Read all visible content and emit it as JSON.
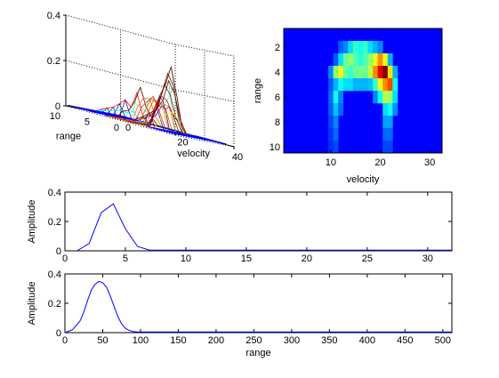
{
  "chart_data": [
    {
      "type": "surface3d",
      "xlabel": "velocity",
      "ylabel": "range",
      "zlabel": "",
      "xlim": [
        0,
        40
      ],
      "ylim": [
        0,
        10
      ],
      "zlim": [
        0,
        0.4
      ],
      "x_ticks": [
        "0",
        "20",
        "40"
      ],
      "y_ticks": [
        "0",
        "5",
        "10"
      ],
      "z_ticks": [
        "0",
        "0.2",
        "0.4"
      ],
      "grid": true,
      "peak": {
        "velocity": 20,
        "range": 4,
        "amplitude": 0.28
      }
    },
    {
      "type": "heatmap",
      "xlabel": "velocity",
      "ylabel": "range",
      "xlim": [
        0.5,
        32.5
      ],
      "ylim": [
        0.5,
        10.5
      ],
      "x_ticks": [
        "10",
        "20",
        "30"
      ],
      "y_ticks": [
        "2",
        "4",
        "6",
        "8",
        "10"
      ],
      "colormap": "jet",
      "rows": 10,
      "cols": 32,
      "cells": [
        [
          2,
          12,
          0.1
        ],
        [
          2,
          13,
          0.15
        ],
        [
          2,
          14,
          0.25
        ],
        [
          2,
          15,
          0.35
        ],
        [
          2,
          16,
          0.3
        ],
        [
          2,
          17,
          0.35
        ],
        [
          2,
          18,
          0.25
        ],
        [
          2,
          19,
          0.2
        ],
        [
          2,
          20,
          0.15
        ],
        [
          3,
          11,
          0.1
        ],
        [
          3,
          12,
          0.25
        ],
        [
          3,
          13,
          0.4
        ],
        [
          3,
          14,
          0.45
        ],
        [
          3,
          15,
          0.38
        ],
        [
          3,
          16,
          0.32
        ],
        [
          3,
          17,
          0.38
        ],
        [
          3,
          18,
          0.45
        ],
        [
          3,
          19,
          0.55
        ],
        [
          3,
          20,
          0.7
        ],
        [
          3,
          21,
          0.55
        ],
        [
          3,
          22,
          0.2
        ],
        [
          4,
          10,
          0.15
        ],
        [
          4,
          11,
          0.45
        ],
        [
          4,
          12,
          0.55
        ],
        [
          4,
          13,
          0.4
        ],
        [
          4,
          14,
          0.35
        ],
        [
          4,
          15,
          0.4
        ],
        [
          4,
          16,
          0.42
        ],
        [
          4,
          17,
          0.4
        ],
        [
          4,
          18,
          0.5
        ],
        [
          4,
          19,
          0.7
        ],
        [
          4,
          20,
          0.88
        ],
        [
          4,
          21,
          1.0
        ],
        [
          4,
          22,
          0.6
        ],
        [
          4,
          23,
          0.2
        ],
        [
          5,
          10,
          0.1
        ],
        [
          5,
          11,
          0.2
        ],
        [
          5,
          12,
          0.3
        ],
        [
          5,
          13,
          0.25
        ],
        [
          5,
          14,
          0.25
        ],
        [
          5,
          15,
          0.2
        ],
        [
          5,
          16,
          0.2
        ],
        [
          5,
          17,
          0.2
        ],
        [
          5,
          18,
          0.22
        ],
        [
          5,
          19,
          0.35
        ],
        [
          5,
          20,
          0.55
        ],
        [
          5,
          21,
          0.7
        ],
        [
          5,
          22,
          0.78
        ],
        [
          5,
          23,
          0.3
        ],
        [
          6,
          10,
          0.12
        ],
        [
          6,
          11,
          0.3
        ],
        [
          6,
          12,
          0.15
        ],
        [
          6,
          19,
          0.15
        ],
        [
          6,
          20,
          0.3
        ],
        [
          6,
          21,
          0.5
        ],
        [
          6,
          22,
          0.45
        ],
        [
          6,
          23,
          0.25
        ],
        [
          7,
          10,
          0.1
        ],
        [
          7,
          11,
          0.22
        ],
        [
          7,
          12,
          0.12
        ],
        [
          7,
          21,
          0.25
        ],
        [
          7,
          22,
          0.3
        ],
        [
          7,
          23,
          0.15
        ],
        [
          8,
          10,
          0.08
        ],
        [
          8,
          11,
          0.15
        ],
        [
          8,
          21,
          0.18
        ],
        [
          8,
          22,
          0.18
        ],
        [
          9,
          10,
          0.06
        ],
        [
          9,
          11,
          0.12
        ],
        [
          9,
          21,
          0.12
        ],
        [
          9,
          22,
          0.12
        ],
        [
          10,
          10,
          0.05
        ],
        [
          10,
          11,
          0.08
        ],
        [
          10,
          21,
          0.08
        ],
        [
          10,
          22,
          0.08
        ]
      ]
    },
    {
      "type": "line",
      "xlabel": "",
      "ylabel": "Amplitude",
      "xlim": [
        0,
        32
      ],
      "ylim": [
        0,
        0.4
      ],
      "x_ticks": [
        "0",
        "5",
        "10",
        "15",
        "20",
        "25",
        "30"
      ],
      "y_ticks": [
        "0",
        "0.2",
        "0.4"
      ],
      "series": [
        {
          "color": "#0000ff",
          "x": [
            1,
            2,
            3,
            4,
            5,
            6,
            7,
            8,
            9,
            10,
            11,
            12,
            13,
            14,
            15,
            16,
            17,
            18,
            19,
            20,
            21,
            22,
            23,
            24,
            25,
            26,
            27,
            28,
            29,
            30,
            31,
            32
          ],
          "y": [
            0.0,
            0.05,
            0.26,
            0.32,
            0.15,
            0.03,
            0.005,
            0.004,
            0.004,
            0.004,
            0.004,
            0.004,
            0.004,
            0.004,
            0.004,
            0.004,
            0.004,
            0.004,
            0.004,
            0.004,
            0.004,
            0.004,
            0.004,
            0.004,
            0.004,
            0.004,
            0.004,
            0.004,
            0.004,
            0.004,
            0.004,
            0.004
          ]
        }
      ]
    },
    {
      "type": "line",
      "xlabel": "range",
      "ylabel": "Amplitude",
      "xlim": [
        0,
        512
      ],
      "ylim": [
        0,
        0.4
      ],
      "x_ticks": [
        "0",
        "50",
        "100",
        "150",
        "200",
        "250",
        "300",
        "350",
        "400",
        "450",
        "500"
      ],
      "y_ticks": [
        "0",
        "0.2",
        "0.4"
      ],
      "series": [
        {
          "color": "#0000ff",
          "x": [
            0,
            10,
            20,
            25,
            30,
            35,
            40,
            45,
            50,
            55,
            60,
            65,
            70,
            75,
            80,
            85,
            90,
            95,
            100,
            150,
            200,
            250,
            300,
            350,
            400,
            450,
            512
          ],
          "y": [
            0.0,
            0.02,
            0.08,
            0.14,
            0.22,
            0.29,
            0.33,
            0.35,
            0.34,
            0.31,
            0.25,
            0.18,
            0.11,
            0.06,
            0.03,
            0.015,
            0.008,
            0.005,
            0.004,
            0.004,
            0.004,
            0.004,
            0.004,
            0.004,
            0.004,
            0.004,
            0.004
          ]
        }
      ]
    }
  ]
}
